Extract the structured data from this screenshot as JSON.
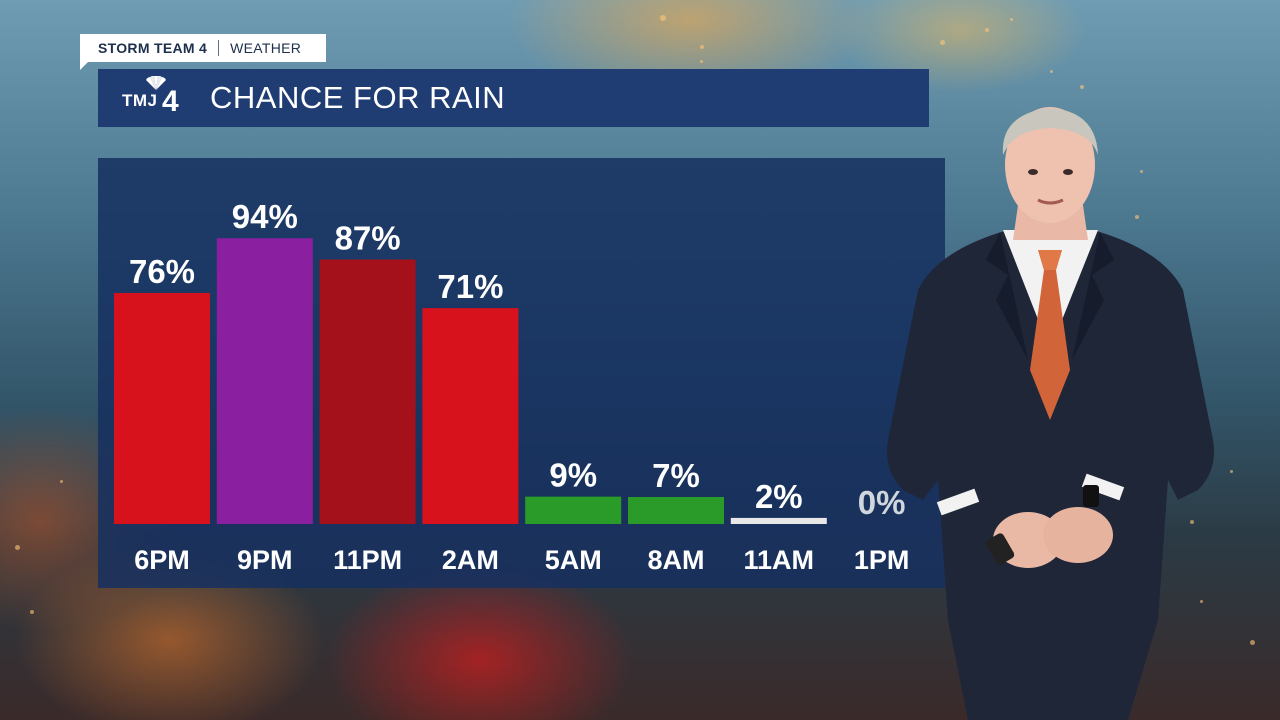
{
  "branding": {
    "team": "STORM TEAM 4",
    "section": "WEATHER",
    "station_logo": "TMJ4",
    "logo_icon": "peacock-icon"
  },
  "title": "CHANCE FOR RAIN",
  "colors": {
    "title_bar": "#1f3d73",
    "panel": "#163060",
    "red": "#d8121c",
    "purple": "#8a1fa0",
    "dark_red": "#a5111a",
    "green": "#2a9a28",
    "white": "#e8e8e8"
  },
  "chart_data": {
    "type": "bar",
    "title": "CHANCE FOR RAIN",
    "xlabel": "",
    "ylabel": "",
    "ylim": [
      0,
      100
    ],
    "grid": false,
    "categories": [
      "6PM",
      "9PM",
      "11PM",
      "2AM",
      "5AM",
      "8AM",
      "11AM",
      "1PM"
    ],
    "values": [
      76,
      94,
      87,
      71,
      9,
      7,
      2,
      0
    ],
    "value_labels": [
      "76%",
      "94%",
      "87%",
      "71%",
      "9%",
      "7%",
      "2%",
      "0%"
    ],
    "bar_colors": [
      "#d8121c",
      "#8a1fa0",
      "#a5111a",
      "#d8121c",
      "#2a9a28",
      "#2a9a28",
      "#e8e8e8",
      "#e8e8e8"
    ]
  }
}
